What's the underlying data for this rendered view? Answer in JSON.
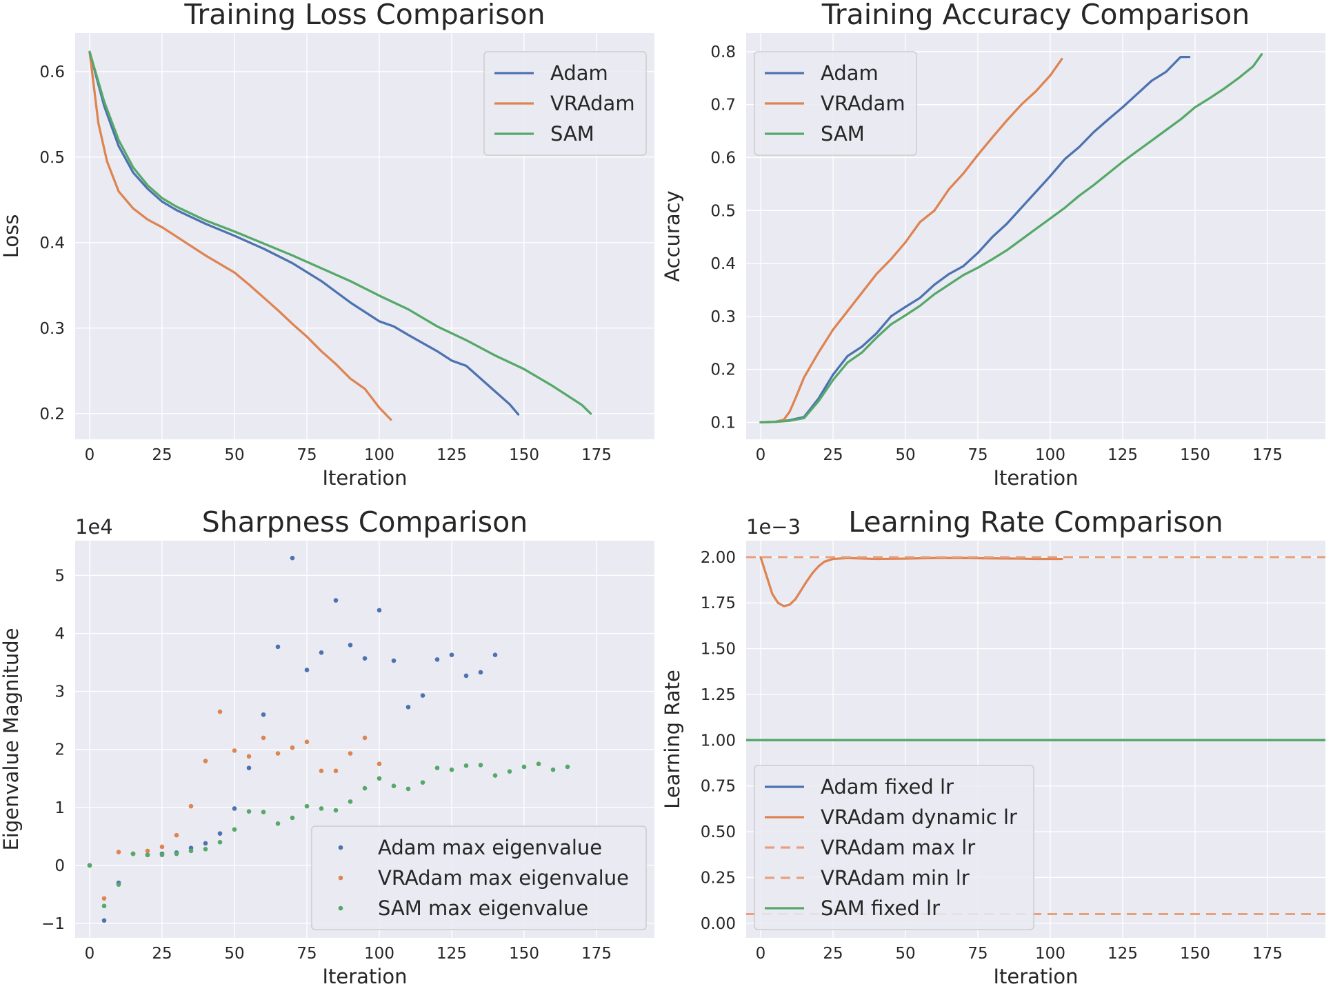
{
  "chart_data": [
    {
      "type": "line",
      "title": "Training Loss Comparison",
      "xlabel": "Iteration",
      "ylabel": "Loss",
      "xlim": [
        -5,
        195
      ],
      "ylim": [
        0.17,
        0.645
      ],
      "xticks": [
        0,
        25,
        50,
        75,
        100,
        125,
        150,
        175
      ],
      "yticks": [
        0.2,
        0.3,
        0.4,
        0.5,
        0.6
      ],
      "tick_decimals": 1,
      "legend_position": "upper right",
      "grid": true,
      "series": [
        {
          "name": "Adam",
          "color": "#4c72b0",
          "x": [
            0,
            5,
            10,
            15,
            20,
            25,
            30,
            40,
            50,
            60,
            70,
            80,
            90,
            100,
            105,
            110,
            120,
            125,
            130,
            140,
            145,
            148
          ],
          "y": [
            0.623,
            0.56,
            0.513,
            0.482,
            0.463,
            0.448,
            0.438,
            0.422,
            0.408,
            0.393,
            0.376,
            0.355,
            0.33,
            0.308,
            0.302,
            0.292,
            0.273,
            0.262,
            0.256,
            0.226,
            0.211,
            0.199
          ]
        },
        {
          "name": "VRAdam",
          "color": "#dd8452",
          "x": [
            0,
            3,
            6,
            10,
            15,
            20,
            25,
            30,
            40,
            50,
            55,
            60,
            65,
            70,
            75,
            80,
            85,
            90,
            95,
            100,
            104
          ],
          "y": [
            0.623,
            0.54,
            0.495,
            0.46,
            0.44,
            0.427,
            0.418,
            0.407,
            0.385,
            0.365,
            0.351,
            0.336,
            0.321,
            0.305,
            0.29,
            0.273,
            0.258,
            0.241,
            0.229,
            0.207,
            0.193
          ]
        },
        {
          "name": "SAM",
          "color": "#55a868",
          "x": [
            0,
            5,
            10,
            15,
            20,
            25,
            30,
            40,
            50,
            60,
            70,
            80,
            90,
            100,
            110,
            120,
            130,
            140,
            150,
            160,
            170,
            173
          ],
          "y": [
            0.623,
            0.565,
            0.52,
            0.488,
            0.467,
            0.452,
            0.442,
            0.426,
            0.413,
            0.399,
            0.385,
            0.37,
            0.355,
            0.338,
            0.322,
            0.302,
            0.286,
            0.268,
            0.252,
            0.232,
            0.21,
            0.2
          ]
        }
      ]
    },
    {
      "type": "line",
      "title": "Training Accuracy Comparison",
      "xlabel": "Iteration",
      "ylabel": "Accuracy",
      "xlim": [
        -5,
        195
      ],
      "ylim": [
        0.068,
        0.835
      ],
      "xticks": [
        0,
        25,
        50,
        75,
        100,
        125,
        150,
        175
      ],
      "yticks": [
        0.1,
        0.2,
        0.3,
        0.4,
        0.5,
        0.6,
        0.7,
        0.8
      ],
      "tick_decimals": 1,
      "legend_position": "upper left",
      "grid": true,
      "series": [
        {
          "name": "Adam",
          "color": "#4c72b0",
          "x": [
            0,
            5,
            10,
            15,
            20,
            25,
            30,
            35,
            40,
            45,
            50,
            55,
            60,
            65,
            70,
            75,
            80,
            85,
            90,
            95,
            100,
            105,
            110,
            115,
            120,
            125,
            130,
            135,
            140,
            145,
            148
          ],
          "y": [
            0.1,
            0.101,
            0.104,
            0.11,
            0.145,
            0.19,
            0.225,
            0.243,
            0.268,
            0.3,
            0.318,
            0.335,
            0.36,
            0.38,
            0.395,
            0.42,
            0.45,
            0.475,
            0.505,
            0.535,
            0.565,
            0.597,
            0.62,
            0.648,
            0.672,
            0.695,
            0.72,
            0.745,
            0.762,
            0.79,
            0.79
          ]
        },
        {
          "name": "VRAdam",
          "color": "#dd8452",
          "x": [
            0,
            5,
            8,
            10,
            12,
            15,
            20,
            25,
            30,
            35,
            40,
            45,
            50,
            55,
            60,
            65,
            70,
            75,
            80,
            85,
            90,
            95,
            100,
            104
          ],
          "y": [
            0.1,
            0.101,
            0.105,
            0.12,
            0.145,
            0.185,
            0.232,
            0.275,
            0.31,
            0.345,
            0.38,
            0.408,
            0.44,
            0.478,
            0.5,
            0.54,
            0.57,
            0.605,
            0.638,
            0.67,
            0.7,
            0.725,
            0.755,
            0.786
          ]
        },
        {
          "name": "SAM",
          "color": "#55a868",
          "x": [
            0,
            5,
            10,
            15,
            20,
            25,
            30,
            35,
            40,
            45,
            50,
            55,
            60,
            65,
            70,
            75,
            80,
            85,
            90,
            95,
            100,
            105,
            110,
            115,
            120,
            125,
            130,
            135,
            140,
            145,
            150,
            155,
            160,
            165,
            170,
            173
          ],
          "y": [
            0.1,
            0.101,
            0.103,
            0.108,
            0.14,
            0.18,
            0.213,
            0.232,
            0.26,
            0.285,
            0.302,
            0.32,
            0.342,
            0.36,
            0.378,
            0.392,
            0.408,
            0.425,
            0.445,
            0.465,
            0.485,
            0.505,
            0.528,
            0.548,
            0.57,
            0.592,
            0.612,
            0.632,
            0.652,
            0.672,
            0.695,
            0.712,
            0.73,
            0.75,
            0.772,
            0.795
          ]
        }
      ]
    },
    {
      "type": "scatter",
      "title": "Sharpness Comparison",
      "xlabel": "Iteration",
      "ylabel": "Eigenvalue Magnitude",
      "offset_text": "1e4",
      "xlim": [
        -5,
        195
      ],
      "ylim": [
        -1.25,
        5.6
      ],
      "xticks": [
        0,
        25,
        50,
        75,
        100,
        125,
        150,
        175
      ],
      "yticks": [
        -1,
        0,
        1,
        2,
        3,
        4,
        5
      ],
      "tick_decimals": 0,
      "legend_position": "lower right",
      "grid": true,
      "series": [
        {
          "name": "Adam max eigenvalue",
          "color": "#4c72b0",
          "x": [
            0,
            5,
            10,
            15,
            20,
            25,
            30,
            35,
            40,
            45,
            50,
            55,
            60,
            65,
            70,
            75,
            80,
            85,
            90,
            95,
            100,
            105,
            110,
            115,
            120,
            125,
            130,
            135,
            140
          ],
          "y": [
            0,
            -0.95,
            -0.3,
            0.2,
            0.18,
            0.2,
            0.22,
            0.3,
            0.38,
            0.55,
            0.98,
            1.68,
            2.6,
            3.77,
            5.3,
            3.37,
            3.67,
            4.57,
            3.8,
            3.57,
            4.4,
            3.53,
            2.73,
            2.93,
            3.55,
            3.63,
            3.27,
            3.33,
            3.63
          ]
        },
        {
          "name": "VRAdam max eigenvalue",
          "color": "#dd8452",
          "x": [
            0,
            5,
            10,
            15,
            20,
            25,
            30,
            35,
            40,
            45,
            50,
            55,
            60,
            65,
            70,
            75,
            80,
            85,
            90,
            95,
            100
          ],
          "y": [
            0,
            -0.57,
            0.23,
            0.2,
            0.25,
            0.32,
            0.52,
            1.02,
            1.8,
            2.65,
            1.98,
            1.88,
            2.2,
            1.93,
            2.03,
            2.13,
            1.63,
            1.63,
            1.93,
            2.2,
            1.75
          ]
        },
        {
          "name": "SAM max eigenvalue",
          "color": "#55a868",
          "x": [
            0,
            5,
            10,
            15,
            20,
            25,
            30,
            35,
            40,
            45,
            50,
            55,
            60,
            65,
            70,
            75,
            80,
            85,
            90,
            95,
            100,
            105,
            110,
            115,
            120,
            125,
            130,
            135,
            140,
            145,
            150,
            155,
            160,
            165
          ],
          "y": [
            0,
            -0.7,
            -0.33,
            0.2,
            0.18,
            0.18,
            0.2,
            0.25,
            0.28,
            0.4,
            0.62,
            0.93,
            0.92,
            0.72,
            0.82,
            1.02,
            0.98,
            0.95,
            1.1,
            1.33,
            1.5,
            1.37,
            1.32,
            1.43,
            1.68,
            1.65,
            1.72,
            1.73,
            1.55,
            1.62,
            1.7,
            1.75,
            1.65,
            1.7
          ]
        }
      ]
    },
    {
      "type": "line",
      "title": "Learning Rate Comparison",
      "xlabel": "Iteration",
      "ylabel": "Learning Rate",
      "offset_text": "1e−3",
      "xlim": [
        -5,
        195
      ],
      "ylim": [
        -0.08,
        2.09
      ],
      "xticks": [
        0,
        25,
        50,
        75,
        100,
        125,
        150,
        175
      ],
      "yticks": [
        0.0,
        0.25,
        0.5,
        0.75,
        1.0,
        1.25,
        1.5,
        1.75,
        2.0
      ],
      "tick_decimals": 2,
      "legend_position": "lower left",
      "grid": true,
      "series": [
        {
          "name": "Adam fixed lr",
          "color": "#4c72b0",
          "x": [
            -5,
            195
          ],
          "y": [
            1.0,
            1.0
          ]
        },
        {
          "name": "VRAdam dynamic lr",
          "color": "#dd8452",
          "x": [
            0,
            2,
            4,
            6,
            8,
            10,
            12,
            14,
            16,
            18,
            20,
            22,
            25,
            30,
            40,
            50,
            60,
            70,
            80,
            90,
            95,
            100,
            104
          ],
          "y": [
            2.0,
            1.9,
            1.8,
            1.75,
            1.732,
            1.74,
            1.77,
            1.82,
            1.87,
            1.915,
            1.95,
            1.975,
            1.99,
            1.995,
            1.99,
            1.992,
            1.995,
            1.995,
            1.993,
            1.992,
            1.99,
            1.99,
            1.99
          ]
        },
        {
          "name": "VRAdam max lr",
          "color": "#e8a07c",
          "dashed": true,
          "x": [
            -5,
            195
          ],
          "y": [
            2.0,
            2.0
          ]
        },
        {
          "name": "VRAdam min lr",
          "color": "#e8a07c",
          "dashed": true,
          "x": [
            -5,
            195
          ],
          "y": [
            0.05,
            0.05
          ]
        },
        {
          "name": "SAM fixed lr",
          "color": "#55a868",
          "x": [
            -5,
            195
          ],
          "y": [
            1.0,
            1.0
          ]
        }
      ]
    }
  ]
}
